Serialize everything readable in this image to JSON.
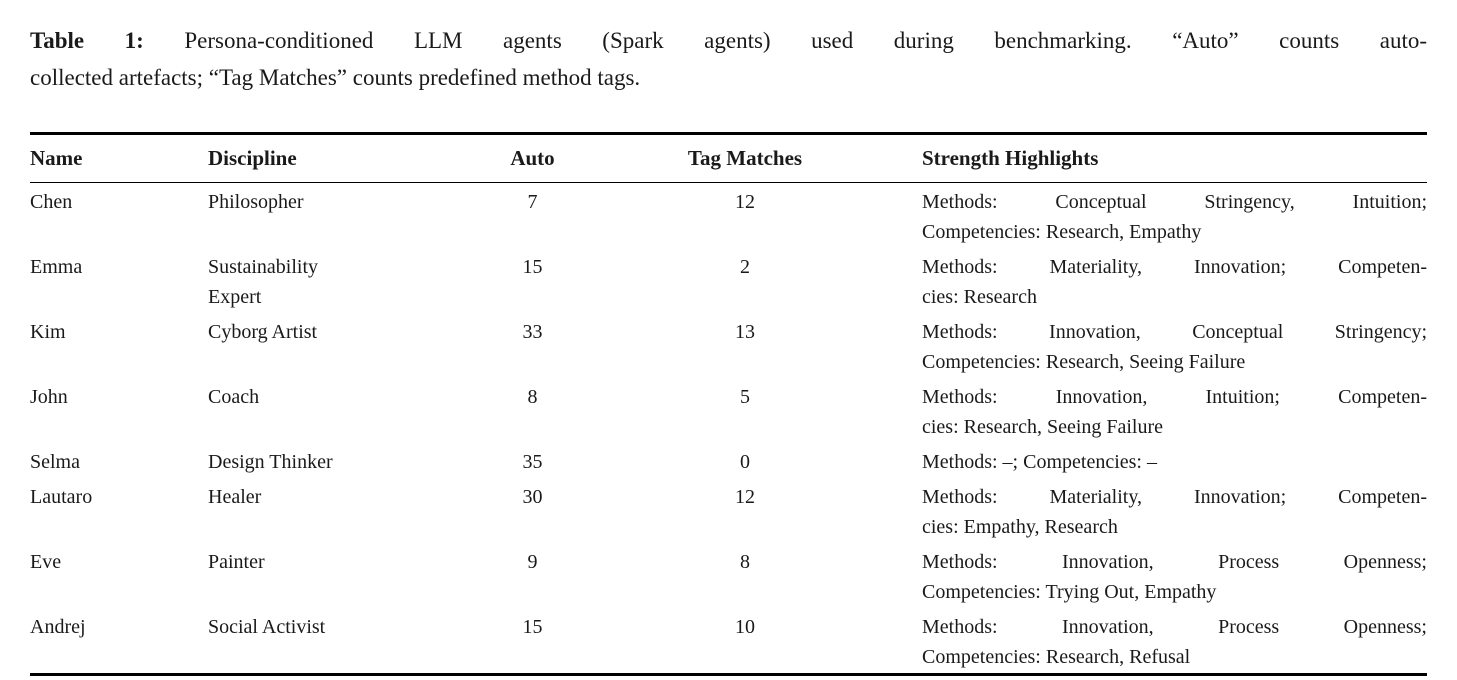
{
  "caption": {
    "label": "Table 1:",
    "line1": "Persona-conditioned LLM agents (Spark agents) used during benchmarking. “Auto” counts auto-",
    "line2": "collected artefacts; “Tag Matches” counts predefined method tags."
  },
  "table": {
    "columns": [
      "Name",
      "Discipline",
      "Auto",
      "Tag Matches",
      "Strength Highlights"
    ],
    "rows": [
      {
        "name": "Chen",
        "discipline_lines": [
          "Philosopher"
        ],
        "auto": "7",
        "tag_matches": "12",
        "highlight_lines": [
          "Methods: Conceptual Stringency, Intuition;",
          "Competencies: Research, Empathy"
        ]
      },
      {
        "name": "Emma",
        "discipline_lines": [
          "Sustainability",
          "Expert"
        ],
        "auto": "15",
        "tag_matches": "2",
        "highlight_lines": [
          "Methods: Materiality, Innovation; Competen-",
          "cies: Research"
        ]
      },
      {
        "name": "Kim",
        "discipline_lines": [
          "Cyborg Artist"
        ],
        "auto": "33",
        "tag_matches": "13",
        "highlight_lines": [
          "Methods: Innovation, Conceptual Stringency;",
          "Competencies: Research, Seeing Failure"
        ]
      },
      {
        "name": "John",
        "discipline_lines": [
          "Coach"
        ],
        "auto": "8",
        "tag_matches": "5",
        "highlight_lines": [
          "Methods: Innovation, Intuition; Competen-",
          "cies: Research, Seeing Failure"
        ]
      },
      {
        "name": "Selma",
        "discipline_lines": [
          "Design Thinker"
        ],
        "auto": "35",
        "tag_matches": "0",
        "highlight_lines": [
          "Methods: –; Competencies: –"
        ]
      },
      {
        "name": "Lautaro",
        "discipline_lines": [
          "Healer"
        ],
        "auto": "30",
        "tag_matches": "12",
        "highlight_lines": [
          "Methods: Materiality, Innovation; Competen-",
          "cies: Empathy, Research"
        ]
      },
      {
        "name": "Eve",
        "discipline_lines": [
          "Painter"
        ],
        "auto": "9",
        "tag_matches": "8",
        "highlight_lines": [
          "Methods: Innovation, Process Openness;",
          "Competencies: Trying Out, Empathy"
        ]
      },
      {
        "name": "Andrej",
        "discipline_lines": [
          "Social Activist"
        ],
        "auto": "15",
        "tag_matches": "10",
        "highlight_lines": [
          "Methods: Innovation, Process Openness;",
          "Competencies: Research, Refusal"
        ]
      }
    ]
  },
  "colors": {
    "text": "#1a1a1a",
    "rule": "#000000",
    "background": "#ffffff"
  }
}
